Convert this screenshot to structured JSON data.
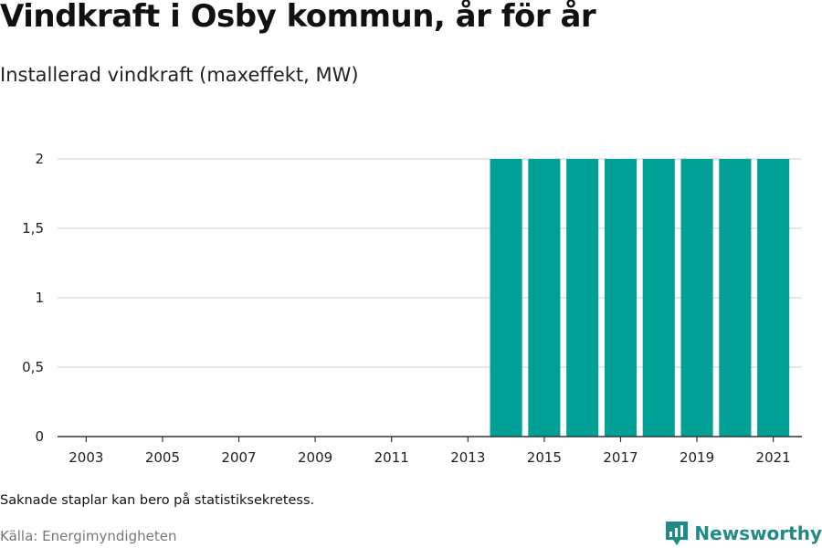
{
  "title": "Vindkraft i Osby kommun, år för år",
  "subtitle": "Installerad vindkraft (maxeffekt, MW)",
  "note": "Saknade staplar kan bero på statistiksekretess.",
  "source": "Källa: Energimyndigheten",
  "brand": {
    "name": "Newsworthy",
    "icon": "newsworthy-logo-icon",
    "color": "#1f8a87"
  },
  "colors": {
    "bar": "#00a096",
    "grid": "#dddddd",
    "axis": "#333333"
  },
  "chart_data": {
    "type": "bar",
    "x": [
      2003,
      2004,
      2005,
      2006,
      2007,
      2008,
      2009,
      2010,
      2011,
      2012,
      2013,
      2014,
      2015,
      2016,
      2017,
      2018,
      2019,
      2020,
      2021
    ],
    "values": [
      null,
      null,
      null,
      null,
      null,
      null,
      null,
      null,
      null,
      null,
      null,
      2,
      2,
      2,
      2,
      2,
      2,
      2,
      2
    ],
    "x_tick_labels": [
      "2003",
      "2005",
      "2007",
      "2009",
      "2011",
      "2013",
      "2015",
      "2017",
      "2019",
      "2021"
    ],
    "y_ticks": [
      0,
      0.5,
      1,
      1.5,
      2
    ],
    "y_tick_labels": [
      "0",
      "0,5",
      "1",
      "1,5",
      "2"
    ],
    "ylim": [
      0,
      2
    ],
    "xlabel": "",
    "ylabel": "",
    "grid": true,
    "legend": "none"
  }
}
